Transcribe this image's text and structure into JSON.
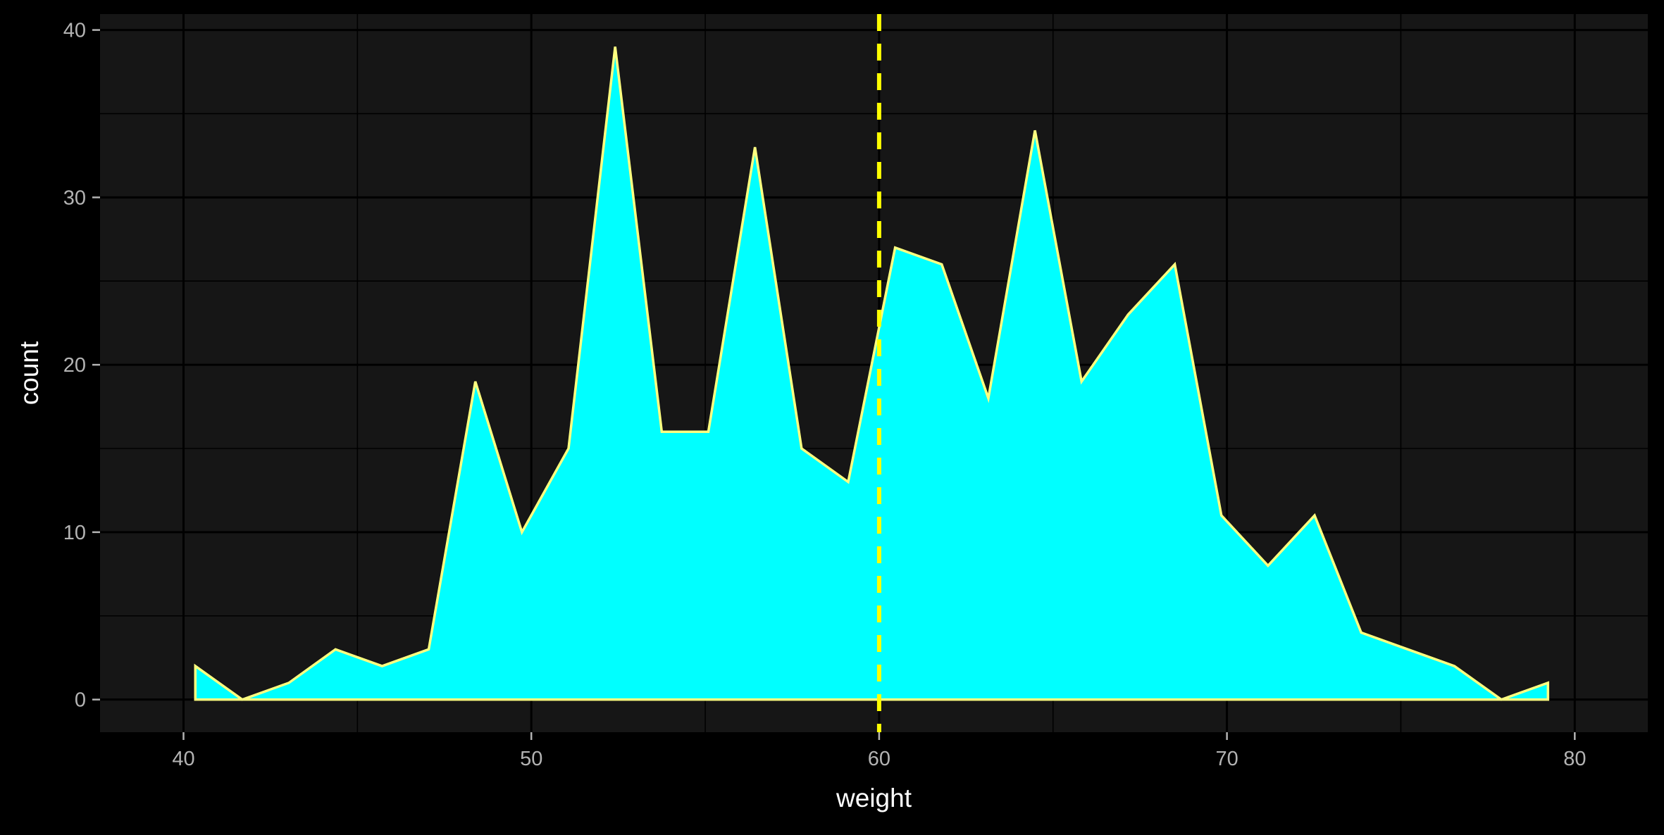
{
  "chart_data": {
    "type": "area",
    "title": "",
    "xlabel": "weight",
    "ylabel": "count",
    "xlim": [
      37.6,
      82.1
    ],
    "ylim": [
      -1.95,
      40.95
    ],
    "x_ticks": [
      40,
      50,
      60,
      70,
      80
    ],
    "x_tick_labels": [
      "40",
      "50",
      "60",
      "70",
      "80"
    ],
    "y_ticks": [
      0,
      10,
      20,
      30,
      40
    ],
    "y_tick_labels": [
      "0",
      "10",
      "20",
      "30",
      "40"
    ],
    "grid": true,
    "legend": "none",
    "series": [
      {
        "x": [
          40.34,
          41.69,
          43.03,
          44.37,
          45.71,
          47.05,
          48.39,
          49.73,
          51.07,
          52.41,
          53.75,
          55.09,
          56.43,
          57.77,
          59.11,
          60.46,
          61.8,
          63.14,
          64.48,
          65.82,
          67.16,
          68.5,
          69.84,
          71.18,
          72.52,
          73.86,
          75.2,
          76.54,
          77.89,
          79.23
        ],
        "values": [
          2,
          0,
          1,
          3,
          2,
          3,
          19,
          10,
          15,
          39,
          16,
          16,
          33,
          15,
          13,
          27,
          26,
          18,
          34,
          19,
          23,
          26,
          11,
          8,
          11,
          4,
          3,
          2,
          0,
          1
        ]
      }
    ],
    "reference_line": {
      "x": 60,
      "style": "dashed"
    },
    "colors": {
      "background": "#000000",
      "panel": "#161616",
      "grid": "#000000",
      "fill": "#00FFFF",
      "outline": "#FFFF80",
      "reference_line": "#FFFF00",
      "axis_text": "#B3B3B3",
      "axis_title": "#FFFFFF"
    }
  }
}
